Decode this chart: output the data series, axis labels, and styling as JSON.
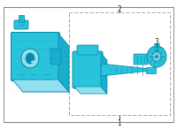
{
  "bg_color": "#ffffff",
  "part_color": "#29c4dc",
  "part_color_dark": "#0a8aab",
  "part_color_light": "#90e0f0",
  "part_color_mid": "#1aaecc",
  "border_color": "#999999",
  "dash_color": "#aaaaaa",
  "text_color": "#222222",
  "font_size": 5.5,
  "label_1": "1",
  "label_2": "2",
  "label_3": "3"
}
